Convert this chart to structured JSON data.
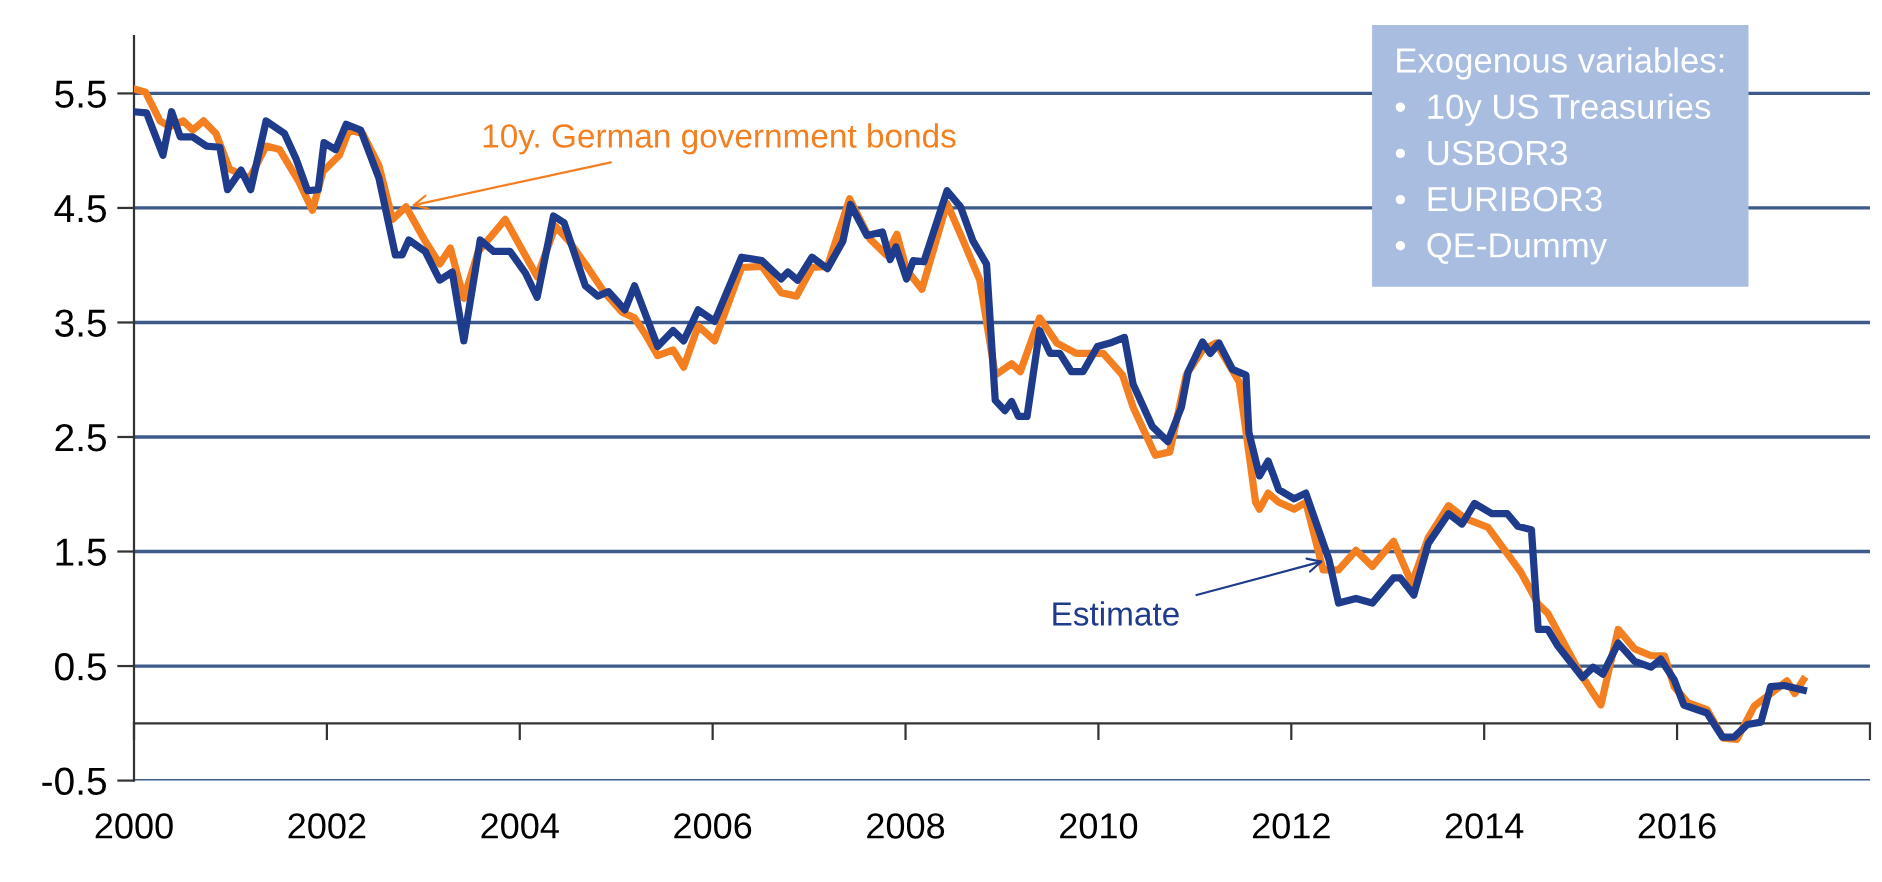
{
  "chart_data": {
    "type": "line",
    "xlim": [
      2000,
      2018
    ],
    "ylim": [
      -0.5,
      6.0
    ],
    "xticks": [
      2000,
      2002,
      2004,
      2006,
      2008,
      2010,
      2012,
      2014,
      2016,
      {
        "value": 2018,
        "label": null
      }
    ],
    "yticks": [
      5.5,
      4.5,
      3.5,
      2.5,
      1.5,
      0.5,
      -0.5
    ],
    "grid": "y",
    "legend": false,
    "marker": "none",
    "line_style": "solid",
    "annotations": [
      "Exogenous variables:\n•  10y US Treasuries\n•  USBOR3\n•  EURIBOR3\n•  QE-Dummy"
    ],
    "series": [
      {
        "name": "10y. German government bonds",
        "color": "#f47f20",
        "x": [
          2000.0,
          2000.12,
          2000.27,
          2000.37,
          2000.51,
          2000.61,
          2000.72,
          2000.85,
          2000.99,
          2001.2,
          2001.37,
          2001.51,
          2001.71,
          2001.85,
          2001.96,
          2002.13,
          2002.23,
          2002.37,
          2002.54,
          2002.68,
          2002.82,
          2003.02,
          2003.17,
          2003.28,
          2003.42,
          2003.57,
          2003.85,
          2004.18,
          2004.37,
          2004.51,
          2004.68,
          2004.88,
          2005.06,
          2005.19,
          2005.3,
          2005.43,
          2005.59,
          2005.7,
          2005.85,
          2006.02,
          2006.3,
          2006.51,
          2006.71,
          2006.87,
          2007.03,
          2007.19,
          2007.42,
          2007.63,
          2007.8,
          2007.91,
          2008.01,
          2008.17,
          2008.43,
          2008.6,
          2008.77,
          2008.93,
          2009.1,
          2009.19,
          2009.39,
          2009.57,
          2009.77,
          2010.05,
          2010.25,
          2010.36,
          2010.59,
          2010.74,
          2010.91,
          2011.08,
          2011.22,
          2011.46,
          2011.63,
          2011.67,
          2011.76,
          2011.87,
          2012.03,
          2012.15,
          2012.33,
          2012.49,
          2012.67,
          2012.84,
          2013.06,
          2013.25,
          2013.42,
          2013.63,
          2013.8,
          2014.04,
          2014.38,
          2014.56,
          2014.66,
          2015.0,
          2015.21,
          2015.39,
          2015.56,
          2015.73,
          2015.87,
          2015.97,
          2016.11,
          2016.31,
          2016.48,
          2016.62,
          2016.8,
          2016.97,
          2017.14,
          2017.22,
          2017.31
        ],
        "values": [
          5.54,
          5.51,
          5.26,
          5.21,
          5.26,
          5.18,
          5.26,
          5.15,
          4.84,
          4.76,
          5.04,
          5.01,
          4.73,
          4.48,
          4.82,
          4.96,
          5.18,
          5.15,
          4.87,
          4.4,
          4.51,
          4.21,
          4.01,
          4.15,
          3.71,
          4.12,
          4.4,
          3.9,
          4.34,
          4.21,
          4.01,
          3.76,
          3.59,
          3.54,
          3.4,
          3.21,
          3.26,
          3.11,
          3.47,
          3.34,
          3.98,
          3.99,
          3.76,
          3.73,
          3.98,
          3.99,
          4.58,
          4.23,
          4.09,
          4.27,
          3.96,
          3.79,
          4.54,
          4.21,
          3.87,
          3.04,
          3.14,
          3.07,
          3.54,
          3.32,
          3.23,
          3.23,
          3.04,
          2.76,
          2.34,
          2.37,
          3.04,
          3.26,
          3.32,
          2.98,
          1.93,
          1.87,
          2.01,
          1.93,
          1.87,
          1.93,
          1.34,
          1.34,
          1.51,
          1.37,
          1.59,
          1.22,
          1.62,
          1.9,
          1.79,
          1.71,
          1.32,
          1.04,
          0.96,
          0.43,
          0.16,
          0.82,
          0.65,
          0.59,
          0.59,
          0.32,
          0.18,
          0.12,
          -0.13,
          -0.14,
          0.15,
          0.26,
          0.37,
          0.26,
          0.38
        ]
      },
      {
        "name": "Estimate",
        "color": "#1f3c8c",
        "x": [
          2000.0,
          2000.13,
          2000.3,
          2000.39,
          2000.48,
          2000.61,
          2000.75,
          2000.89,
          2000.97,
          2001.11,
          2001.21,
          2001.37,
          2001.56,
          2001.68,
          2001.8,
          2001.91,
          2001.97,
          2002.09,
          2002.2,
          2002.35,
          2002.54,
          2002.71,
          2002.78,
          2002.85,
          2003.02,
          2003.17,
          2003.3,
          2003.42,
          2003.59,
          2003.73,
          2003.9,
          2004.06,
          2004.18,
          2004.35,
          2004.46,
          2004.68,
          2004.81,
          2004.92,
          2005.09,
          2005.19,
          2005.43,
          2005.59,
          2005.7,
          2005.85,
          2006.02,
          2006.3,
          2006.51,
          2006.71,
          2006.78,
          2006.88,
          2007.03,
          2007.19,
          2007.35,
          2007.43,
          2007.6,
          2007.76,
          2007.84,
          2007.9,
          2008.01,
          2008.08,
          2008.19,
          2008.43,
          2008.57,
          2008.7,
          2008.84,
          2008.93,
          2009.03,
          2009.1,
          2009.17,
          2009.26,
          2009.39,
          2009.5,
          2009.6,
          2009.72,
          2009.84,
          2009.99,
          2010.12,
          2010.27,
          2010.36,
          2010.56,
          2010.72,
          2010.86,
          2010.93,
          2011.08,
          2011.16,
          2011.25,
          2011.39,
          2011.53,
          2011.56,
          2011.67,
          2011.76,
          2011.87,
          2012.03,
          2012.15,
          2012.39,
          2012.49,
          2012.67,
          2012.84,
          2013.06,
          2013.13,
          2013.27,
          2013.42,
          2013.63,
          2013.77,
          2013.9,
          2014.08,
          2014.24,
          2014.35,
          2014.49,
          2014.56,
          2014.66,
          2014.76,
          2015.02,
          2015.13,
          2015.23,
          2015.39,
          2015.56,
          2015.73,
          2015.83,
          2015.97,
          2016.07,
          2016.31,
          2016.47,
          2016.59,
          2016.73,
          2016.87,
          2016.97,
          2017.11,
          2017.31
        ],
        "values": [
          5.34,
          5.33,
          4.96,
          5.34,
          5.12,
          5.12,
          5.04,
          5.03,
          4.66,
          4.83,
          4.66,
          5.26,
          5.15,
          4.93,
          4.65,
          4.66,
          5.07,
          5.01,
          5.23,
          5.18,
          4.76,
          4.09,
          4.09,
          4.22,
          4.12,
          3.87,
          3.94,
          3.34,
          4.22,
          4.12,
          4.12,
          3.93,
          3.72,
          4.43,
          4.37,
          3.82,
          3.73,
          3.77,
          3.61,
          3.82,
          3.29,
          3.43,
          3.34,
          3.61,
          3.51,
          4.07,
          4.04,
          3.88,
          3.94,
          3.87,
          4.07,
          3.97,
          4.21,
          4.53,
          4.26,
          4.29,
          4.05,
          4.16,
          3.88,
          4.04,
          4.03,
          4.65,
          4.51,
          4.21,
          4.01,
          2.82,
          2.73,
          2.81,
          2.68,
          2.68,
          3.43,
          3.23,
          3.23,
          3.07,
          3.07,
          3.29,
          3.32,
          3.37,
          2.96,
          2.59,
          2.46,
          2.76,
          3.07,
          3.33,
          3.23,
          3.32,
          3.09,
          3.04,
          2.54,
          2.16,
          2.29,
          2.04,
          1.96,
          2.01,
          1.43,
          1.05,
          1.09,
          1.05,
          1.27,
          1.27,
          1.12,
          1.57,
          1.83,
          1.74,
          1.92,
          1.83,
          1.83,
          1.72,
          1.69,
          0.82,
          0.82,
          0.68,
          0.4,
          0.49,
          0.43,
          0.7,
          0.54,
          0.49,
          0.56,
          0.38,
          0.16,
          0.09,
          -0.12,
          -0.12,
          -0.01,
          0.01,
          0.32,
          0.33,
          0.29
        ]
      }
    ]
  }
}
